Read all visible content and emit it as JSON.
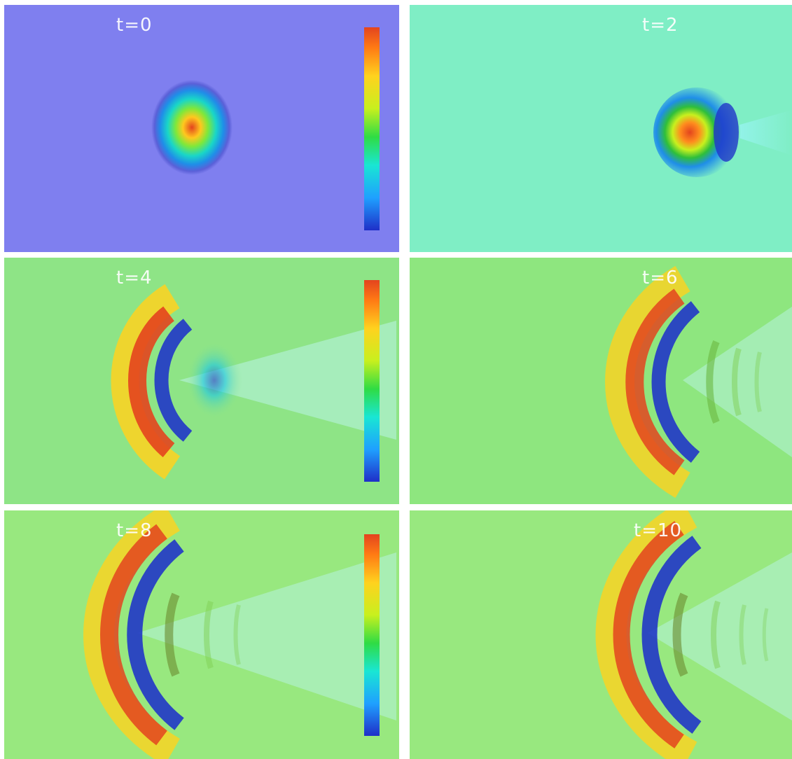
{
  "figure": {
    "panels": [
      {
        "id": "p1",
        "title": "t=0",
        "background": "#7f7fef",
        "colorbar": true,
        "colorbar_ticks": [
          "",
          "",
          "",
          "",
          "",
          "",
          ""
        ]
      },
      {
        "id": "p2",
        "title": "t=2",
        "background": "#7feec5",
        "colorbar": false,
        "colorbar_ticks": []
      },
      {
        "id": "p3",
        "title": "t=4",
        "background": "#8ee486",
        "colorbar": true,
        "colorbar_ticks": [
          "",
          "",
          "",
          "",
          "",
          "",
          ""
        ]
      },
      {
        "id": "p4",
        "title": "t=6",
        "background": "#8ee67f",
        "colorbar": false,
        "colorbar_ticks": []
      },
      {
        "id": "p5",
        "title": "t=8",
        "background": "#98e87f",
        "colorbar": true,
        "colorbar_ticks": [
          "",
          "",
          "",
          "",
          "",
          "",
          ""
        ]
      },
      {
        "id": "p6",
        "title": "t=10",
        "background": "#98e87f",
        "colorbar": false,
        "colorbar_ticks": []
      }
    ],
    "colormap": [
      "#1f2fc8",
      "#1fa0ff",
      "#19e6d4",
      "#2fdc44",
      "#c8f01e",
      "#ffd21e",
      "#ff7a14",
      "#e3441e"
    ]
  }
}
